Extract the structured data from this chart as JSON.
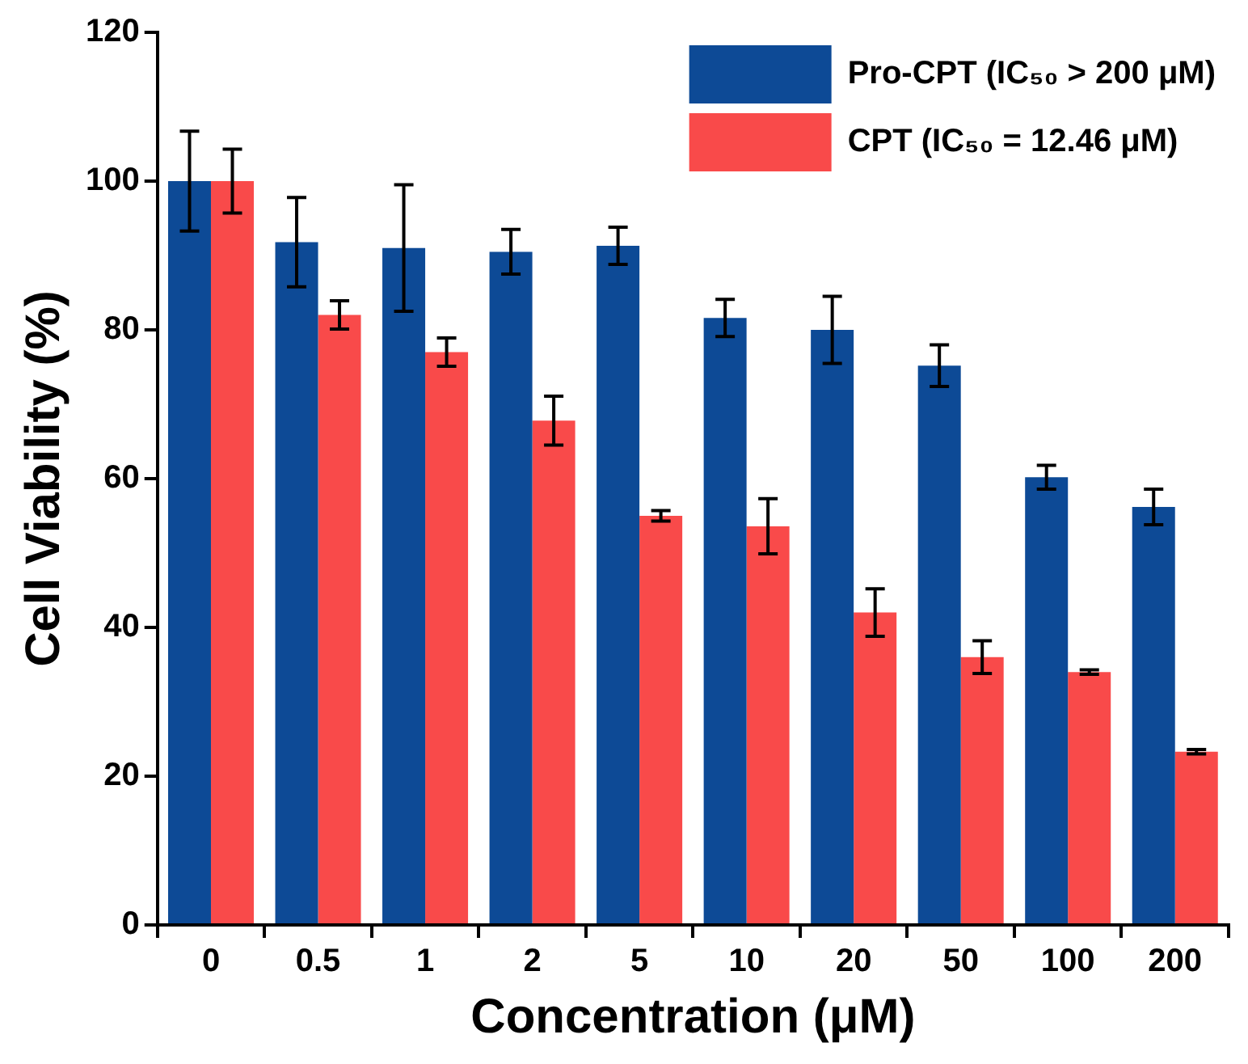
{
  "chart_data": {
    "type": "bar",
    "xlabel": "Concentration (μM)",
    "ylabel": "Cell Viability (%)",
    "categories": [
      "0",
      "0.5",
      "1",
      "2",
      "5",
      "10",
      "20",
      "50",
      "100",
      "200"
    ],
    "series": [
      {
        "name": "Pro-CPT (IC₅₀ > 200 μM)",
        "color": "#0d4a96",
        "values": [
          100,
          91.8,
          91,
          90.5,
          91.3,
          81.6,
          80,
          75.2,
          60.2,
          56.2
        ],
        "errors": [
          6.7,
          6,
          8.5,
          3,
          2.5,
          2.5,
          4.5,
          2.8,
          1.6,
          2.4
        ]
      },
      {
        "name": "CPT (IC₅₀ = 12.46 μM)",
        "color": "#f94a4a",
        "values": [
          100,
          82,
          77,
          67.8,
          55,
          53.6,
          42,
          36,
          34,
          23.3
        ],
        "errors": [
          4.3,
          1.9,
          1.9,
          3.3,
          0.7,
          3.7,
          3.2,
          2.2,
          0.3,
          0.3
        ]
      }
    ],
    "ylim": [
      0,
      120
    ],
    "yticks": [
      0,
      20,
      40,
      60,
      80,
      100,
      120
    ],
    "grid": false,
    "legend": "top right"
  }
}
